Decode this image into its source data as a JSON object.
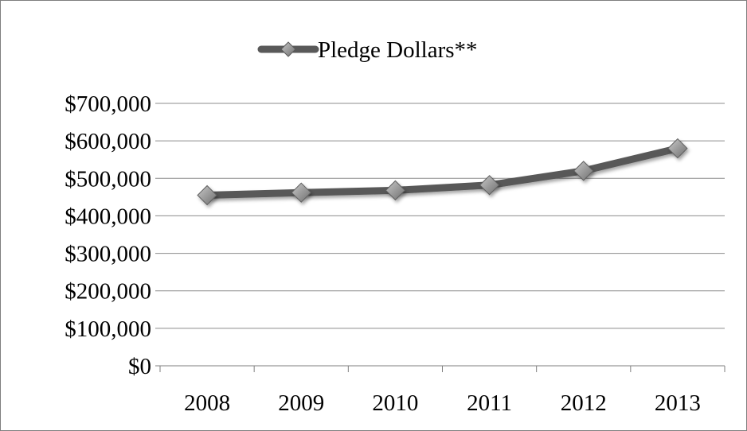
{
  "chart_data": {
    "type": "line",
    "categories": [
      "2008",
      "2009",
      "2010",
      "2011",
      "2012",
      "2013"
    ],
    "series": [
      {
        "name": "Pledge Dollars**",
        "values": [
          455000,
          462000,
          468000,
          482000,
          520000,
          580000
        ]
      }
    ],
    "ylim": [
      0,
      700000
    ],
    "yticks": [
      0,
      100000,
      200000,
      300000,
      400000,
      500000,
      600000,
      700000
    ],
    "ytick_labels": [
      "$0",
      "$100,000",
      "$200,000",
      "$300,000",
      "$400,000",
      "$500,000",
      "$600,000",
      "$700,000"
    ],
    "legend_position": "top-center",
    "grid": true,
    "colors": {
      "line": "#595959",
      "marker": "#8c8c8c",
      "grid": "#8c8c8c"
    }
  }
}
